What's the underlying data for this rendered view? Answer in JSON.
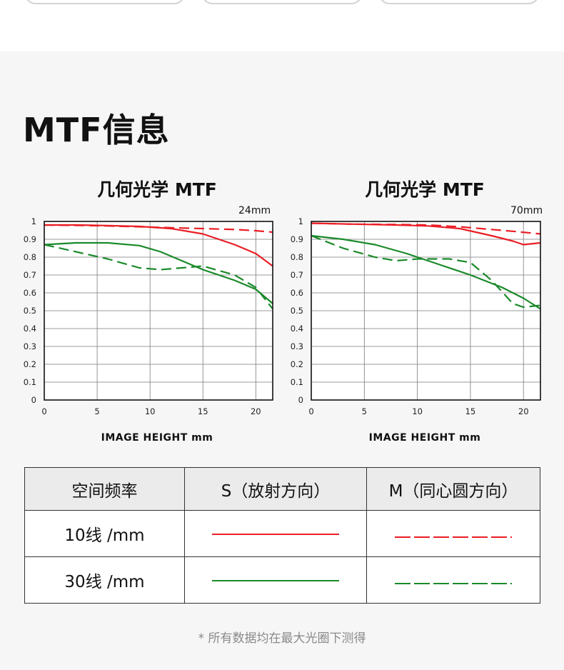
{
  "section_title": "MTF信息",
  "x_axis_label": "IMAGE HEIGHT  mm",
  "colors": {
    "s10": "#ea1e25",
    "s30": "#1b8a2a",
    "grid": "#7a7a7a"
  },
  "chart_data": [
    {
      "type": "line",
      "title": "几何光学 MTF",
      "focal": "24mm",
      "xlabel": "IMAGE HEIGHT  mm",
      "ylabel": "",
      "xlim": [
        0,
        21.6
      ],
      "ylim": [
        0,
        1
      ],
      "x_ticks": [
        0,
        5,
        10,
        15,
        20
      ],
      "y_ticks": [
        0,
        0.1,
        0.2,
        0.3,
        0.4,
        0.5,
        0.6,
        0.7,
        0.8,
        0.9,
        1
      ],
      "series": [
        {
          "name": "10线/mm S",
          "color": "#ea1e25",
          "dash": false,
          "x": [
            0,
            3,
            6,
            9,
            12,
            15,
            18,
            20,
            21.6
          ],
          "y": [
            0.98,
            0.98,
            0.977,
            0.972,
            0.96,
            0.93,
            0.87,
            0.82,
            0.75
          ]
        },
        {
          "name": "10线/mm M",
          "color": "#ea1e25",
          "dash": true,
          "x": [
            0,
            3,
            6,
            9,
            12,
            15,
            18,
            20,
            21.6
          ],
          "y": [
            0.98,
            0.978,
            0.975,
            0.97,
            0.965,
            0.96,
            0.955,
            0.948,
            0.94
          ]
        },
        {
          "name": "30线/mm S",
          "color": "#1b8a2a",
          "dash": false,
          "x": [
            0,
            3,
            6,
            9,
            11,
            13,
            15,
            18,
            20,
            21.6
          ],
          "y": [
            0.87,
            0.88,
            0.88,
            0.865,
            0.83,
            0.78,
            0.73,
            0.67,
            0.62,
            0.54
          ]
        },
        {
          "name": "30线/mm M",
          "color": "#1b8a2a",
          "dash": true,
          "x": [
            0,
            3,
            6,
            9,
            11,
            13,
            15,
            18,
            20,
            21.6
          ],
          "y": [
            0.87,
            0.83,
            0.79,
            0.74,
            0.73,
            0.74,
            0.75,
            0.7,
            0.63,
            0.51
          ]
        }
      ]
    },
    {
      "type": "line",
      "title": "几何光学 MTF",
      "focal": "70mm",
      "xlabel": "IMAGE HEIGHT  mm",
      "ylabel": "",
      "xlim": [
        0,
        21.6
      ],
      "ylim": [
        0,
        1
      ],
      "x_ticks": [
        0,
        5,
        10,
        15,
        20
      ],
      "y_ticks": [
        0,
        0.1,
        0.2,
        0.3,
        0.4,
        0.5,
        0.6,
        0.7,
        0.8,
        0.9,
        1
      ],
      "series": [
        {
          "name": "10线/mm S",
          "color": "#ea1e25",
          "dash": false,
          "x": [
            0,
            4,
            8,
            11,
            14,
            17,
            19,
            20,
            21.6
          ],
          "y": [
            0.99,
            0.985,
            0.98,
            0.975,
            0.96,
            0.92,
            0.89,
            0.87,
            0.88
          ]
        },
        {
          "name": "10线/mm M",
          "color": "#ea1e25",
          "dash": true,
          "x": [
            0,
            4,
            8,
            11,
            14,
            17,
            19,
            21.6
          ],
          "y": [
            0.99,
            0.985,
            0.983,
            0.98,
            0.97,
            0.955,
            0.945,
            0.93
          ]
        },
        {
          "name": "30线/mm S",
          "color": "#1b8a2a",
          "dash": false,
          "x": [
            0,
            3,
            6,
            9,
            12,
            15,
            18,
            20,
            21.6
          ],
          "y": [
            0.92,
            0.9,
            0.87,
            0.82,
            0.76,
            0.7,
            0.63,
            0.57,
            0.51
          ]
        },
        {
          "name": "30线/mm M",
          "color": "#1b8a2a",
          "dash": true,
          "x": [
            0,
            3,
            6,
            8,
            10,
            13,
            15,
            17,
            19,
            20,
            21.6
          ],
          "y": [
            0.92,
            0.85,
            0.8,
            0.78,
            0.79,
            0.79,
            0.77,
            0.67,
            0.54,
            0.52,
            0.53
          ]
        }
      ]
    }
  ],
  "legend_table": {
    "headers": [
      "空间频率",
      "S（放射方向）",
      "M（同心圆方向）"
    ],
    "rows": [
      {
        "label": "10线 /mm"
      },
      {
        "label": "30线 /mm"
      }
    ]
  },
  "footnote": "* 所有数据均在最大光圈下测得"
}
